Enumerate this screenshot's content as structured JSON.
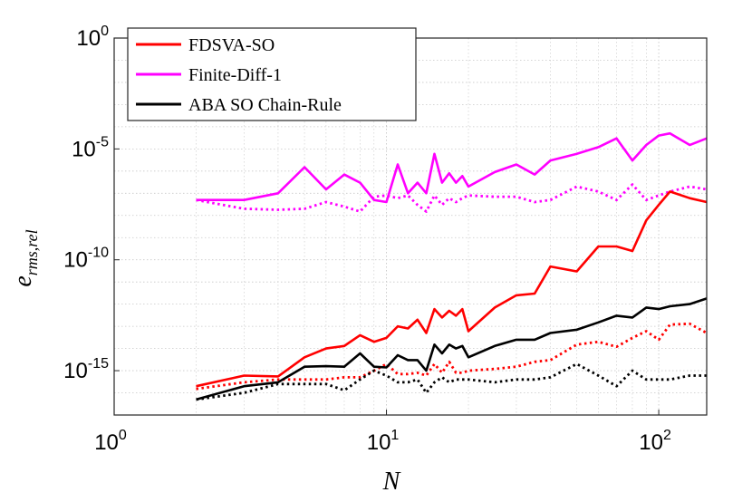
{
  "chart_data": {
    "type": "line",
    "xscale": "log",
    "yscale": "log",
    "xlim": [
      1,
      150
    ],
    "ylim": [
      1e-17,
      1
    ],
    "xlabel": "N",
    "ylabel": "e_rms,rel",
    "ylabel_main": "e",
    "ylabel_sub": "rms,rel",
    "grid": true,
    "legend_position": "top-left",
    "x_ticks": [
      {
        "value": 1,
        "base": "10",
        "exp": "0"
      },
      {
        "value": 10,
        "base": "10",
        "exp": "1"
      },
      {
        "value": 100,
        "base": "10",
        "exp": "2"
      }
    ],
    "y_ticks": [
      {
        "value": 1,
        "base": "10",
        "exp": "0"
      },
      {
        "value": 1e-05,
        "base": "10",
        "exp": "-5"
      },
      {
        "value": 1e-10,
        "base": "10",
        "exp": "-10"
      },
      {
        "value": 1e-15,
        "base": "10",
        "exp": "-15"
      }
    ],
    "x": [
      2,
      3,
      4,
      5,
      6,
      7,
      8,
      9,
      10,
      11,
      12,
      13,
      14,
      15,
      16,
      17,
      18,
      19,
      20,
      25,
      30,
      35,
      40,
      50,
      60,
      70,
      80,
      90,
      100,
      110,
      130,
      150
    ],
    "series": [
      {
        "name": "FDSVA-SO",
        "color": "#ff0000",
        "style": "solid",
        "legend": true,
        "values": [
          2e-16,
          6e-16,
          5.5e-16,
          4e-15,
          1e-14,
          1.3e-14,
          4e-14,
          2e-14,
          3e-14,
          1e-13,
          8e-14,
          2e-13,
          5e-14,
          6e-13,
          2.5e-13,
          5e-13,
          3e-13,
          6e-13,
          6e-14,
          7e-13,
          2.5e-12,
          3e-12,
          5e-11,
          3e-11,
          4e-10,
          4e-10,
          2.5e-10,
          6e-09,
          3e-08,
          1.2e-07,
          6e-08,
          4e-08
        ]
      },
      {
        "name": "Finite-Diff-1",
        "color": "#ff00ff",
        "style": "solid",
        "legend": true,
        "values": [
          5e-08,
          5e-08,
          1e-07,
          1.5e-06,
          1.5e-07,
          7e-07,
          3e-07,
          5e-08,
          4e-08,
          2e-06,
          1e-07,
          3e-07,
          1e-07,
          6e-06,
          3e-07,
          8e-07,
          3e-07,
          6e-07,
          2e-07,
          9e-07,
          2e-06,
          7e-07,
          3e-06,
          6e-06,
          1.2e-05,
          3e-05,
          3e-06,
          1.5e-05,
          4e-05,
          5e-05,
          1.5e-05,
          3e-05
        ]
      },
      {
        "name": "ABA SO Chain-Rule",
        "color": "#000000",
        "style": "solid",
        "legend": true,
        "values": [
          5e-17,
          2e-16,
          3e-16,
          1.5e-15,
          1.6e-15,
          1.5e-15,
          6e-15,
          1.5e-15,
          1.4e-15,
          5e-15,
          3e-15,
          3e-15,
          1e-15,
          1.5e-14,
          6e-15,
          1.5e-14,
          1e-14,
          1.3e-14,
          4e-15,
          1.3e-14,
          2.5e-14,
          2.5e-14,
          5e-14,
          7e-14,
          1.5e-13,
          3e-13,
          2.5e-13,
          7e-13,
          6e-13,
          8e-13,
          1e-12,
          1.8e-12
        ]
      },
      {
        "name": "Finite-Diff-1 (dotted)",
        "color": "#ff00ff",
        "style": "dotted",
        "legend": false,
        "values": [
          5e-08,
          2e-08,
          1.8e-08,
          2e-08,
          4e-08,
          2.5e-08,
          1.5e-08,
          7e-08,
          8e-08,
          6e-08,
          8e-08,
          3e-08,
          1.5e-08,
          8e-08,
          3e-08,
          6e-08,
          4e-08,
          6e-08,
          8e-08,
          7e-08,
          7e-08,
          4e-08,
          5e-08,
          2e-07,
          1.2e-07,
          5e-08,
          2.5e-07,
          5e-08,
          8e-08,
          1.2e-07,
          2e-07,
          1.5e-07
        ]
      },
      {
        "name": "FDSVA-SO (dotted)",
        "color": "#ff0000",
        "style": "dotted",
        "legend": false,
        "values": [
          1.5e-16,
          3e-16,
          4e-16,
          4e-16,
          4e-16,
          5e-16,
          5e-16,
          1e-15,
          2e-15,
          7e-16,
          7e-16,
          8e-16,
          6e-16,
          2e-15,
          8e-16,
          2.5e-15,
          8e-16,
          8e-16,
          1e-15,
          1.2e-15,
          1.5e-15,
          2.5e-15,
          3e-15,
          1.5e-14,
          2e-14,
          1.2e-14,
          3e-14,
          6e-14,
          2.5e-14,
          1.2e-13,
          1.3e-13,
          5e-14
        ]
      },
      {
        "name": "ABA SO Chain-Rule (dotted)",
        "color": "#000000",
        "style": "dotted",
        "legend": false,
        "values": [
          5e-17,
          1e-16,
          2.5e-16,
          2.5e-16,
          2.5e-16,
          1.3e-16,
          4e-16,
          1e-15,
          6e-16,
          3e-16,
          3e-16,
          4e-16,
          1e-16,
          3e-16,
          5e-16,
          3e-16,
          4e-16,
          4e-16,
          4e-16,
          3e-16,
          4e-16,
          4e-16,
          5e-16,
          2e-15,
          6e-16,
          2e-16,
          1e-15,
          4e-16,
          4e-16,
          4e-16,
          6e-16,
          6e-16
        ]
      }
    ]
  }
}
